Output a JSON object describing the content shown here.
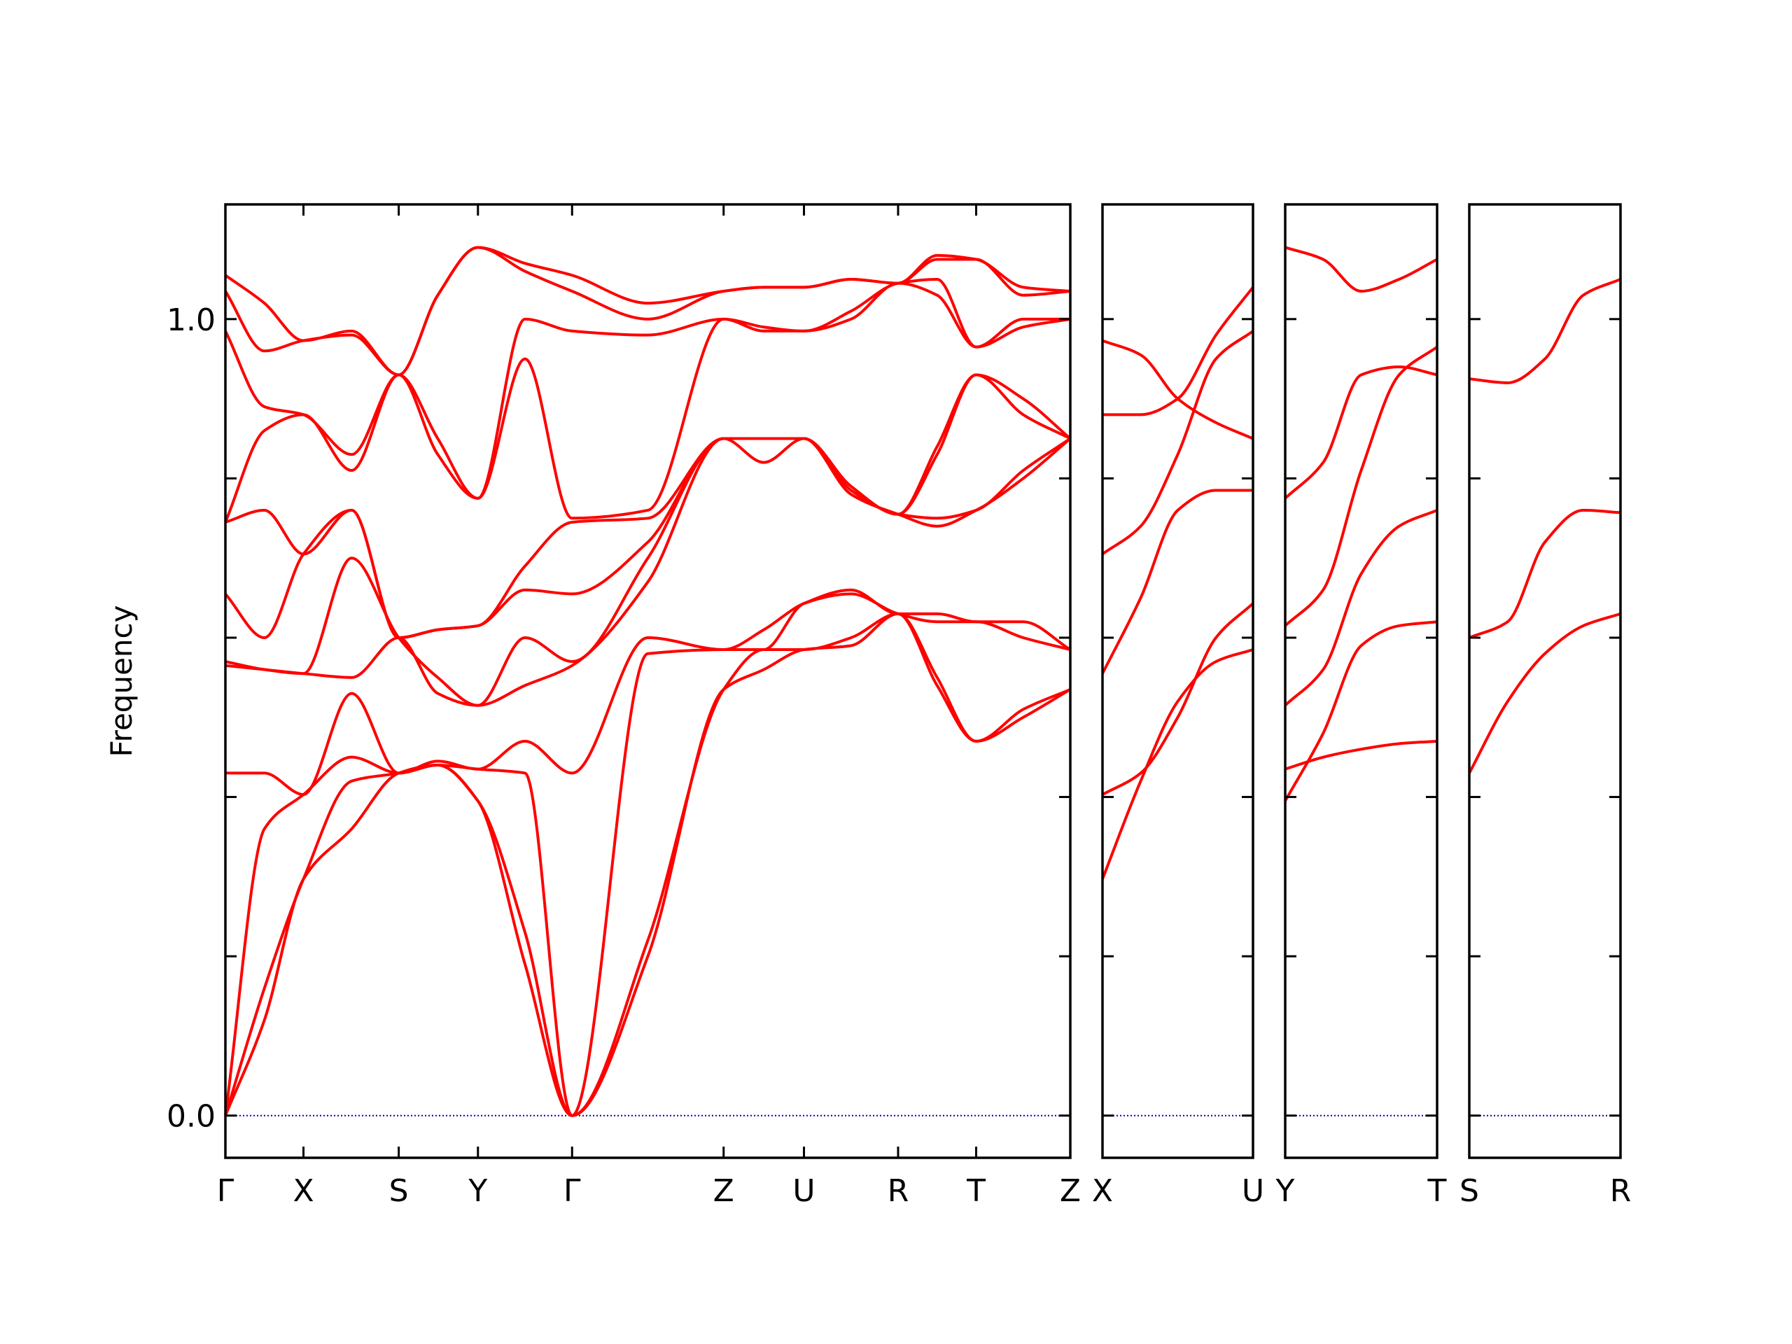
{
  "chart_data": [
    {
      "type": "line",
      "y_label": "Frequency",
      "x": [
        0,
        34,
        68,
        110,
        151,
        185,
        220,
        261,
        302,
        368,
        434,
        469,
        504,
        545,
        586,
        620,
        654,
        695,
        736
      ],
      "xlim": [
        0,
        736
      ],
      "xticks": [
        {
          "value": 0,
          "label": "Γ"
        },
        {
          "value": 68,
          "label": "X"
        },
        {
          "value": 151,
          "label": "S"
        },
        {
          "value": 220,
          "label": "Y"
        },
        {
          "value": 302,
          "label": "Γ"
        },
        {
          "value": 434,
          "label": "Z"
        },
        {
          "value": 504,
          "label": "U"
        },
        {
          "value": 586,
          "label": "R"
        },
        {
          "value": 654,
          "label": "T"
        },
        {
          "value": 736,
          "label": "Z"
        }
      ],
      "ylim": [
        -0.053,
        1.144
      ],
      "yticks": [
        {
          "value": 0,
          "label": "0.0"
        },
        0.2,
        0.4,
        0.6,
        0.8,
        {
          "value": 1,
          "label": "1.0"
        }
      ],
      "series": [
        {
          "color": "#ff0000",
          "values": [
            0,
            0.12,
            0.297,
            0.36,
            0.43,
            0.44,
            0.395,
            0.19,
            0,
            0.2,
            0.535,
            0.56,
            0.585,
            0.59,
            0.63,
            0.54,
            0.47,
            0.5,
            0.535
          ]
        },
        {
          "color": "#ff0000",
          "values": [
            0,
            0.16,
            0.297,
            0.42,
            0.43,
            0.44,
            0.395,
            0.23,
            0,
            0.22,
            0.535,
            0.585,
            0.585,
            0.6,
            0.63,
            0.55,
            0.47,
            0.51,
            0.535
          ]
        },
        {
          "color": "#ff0000",
          "values": [
            0,
            0.36,
            0.403,
            0.45,
            0.43,
            0.44,
            0.435,
            0.43,
            0,
            0.58,
            0.585,
            0.585,
            0.643,
            0.655,
            0.63,
            0.62,
            0.62,
            0.6,
            0.585
          ]
        },
        {
          "color": "#ff0000",
          "values": [
            0.43,
            0.43,
            0.403,
            0.53,
            0.43,
            0.445,
            0.435,
            0.47,
            0.43,
            0.6,
            0.585,
            0.61,
            0.643,
            0.66,
            0.63,
            0.63,
            0.62,
            0.62,
            0.585
          ]
        },
        {
          "color": "#ff0000",
          "values": [
            0.565,
            0.56,
            0.555,
            0.55,
            0.6,
            0.53,
            0.515,
            0.54,
            0.565,
            0.67,
            0.85,
            0.82,
            0.85,
            0.78,
            0.755,
            0.74,
            0.76,
            0.8,
            0.85
          ]
        },
        {
          "color": "#ff0000",
          "values": [
            0.57,
            0.56,
            0.555,
            0.7,
            0.6,
            0.55,
            0.515,
            0.6,
            0.57,
            0.7,
            0.85,
            0.85,
            0.85,
            0.785,
            0.755,
            0.75,
            0.76,
            0.81,
            0.85
          ]
        },
        {
          "color": "#ff0000",
          "values": [
            0.655,
            0.6,
            0.705,
            0.76,
            0.6,
            0.61,
            0.615,
            0.66,
            0.655,
            0.72,
            0.85,
            0.85,
            0.85,
            0.79,
            0.755,
            0.83,
            0.93,
            0.88,
            0.85
          ]
        },
        {
          "color": "#ff0000",
          "values": [
            0.745,
            0.76,
            0.705,
            0.76,
            0.6,
            0.61,
            0.615,
            0.69,
            0.745,
            0.75,
            0.85,
            0.85,
            0.85,
            0.79,
            0.755,
            0.84,
            0.93,
            0.9,
            0.85
          ]
        },
        {
          "color": "#ff0000",
          "values": [
            0.745,
            0.86,
            0.88,
            0.81,
            0.93,
            0.83,
            0.775,
            0.95,
            0.75,
            0.76,
            1.0,
            0.985,
            0.985,
            1.0,
            1.045,
            1.03,
            0.965,
            0.99,
            1.0
          ]
        },
        {
          "color": "#ff0000",
          "values": [
            0.985,
            0.89,
            0.88,
            0.83,
            0.93,
            0.85,
            0.775,
            1.0,
            0.985,
            0.98,
            1.0,
            0.99,
            0.985,
            1.01,
            1.045,
            1.05,
            0.965,
            1.0,
            1.0
          ]
        },
        {
          "color": "#ff0000",
          "values": [
            1.035,
            0.96,
            0.973,
            0.98,
            0.93,
            1.03,
            1.09,
            1.06,
            1.035,
            1.0,
            1.035,
            1.04,
            1.04,
            1.05,
            1.045,
            1.075,
            1.075,
            1.03,
            1.035
          ]
        },
        {
          "color": "#ff0000",
          "values": [
            1.055,
            1.02,
            0.973,
            0.985,
            0.93,
            1.03,
            1.09,
            1.07,
            1.055,
            1.02,
            1.035,
            1.04,
            1.04,
            1.05,
            1.045,
            1.08,
            1.075,
            1.04,
            1.035
          ]
        }
      ]
    },
    {
      "type": "line",
      "x": [
        0,
        33,
        65,
        98,
        130
      ],
      "xlim": [
        0,
        130
      ],
      "xticks": [
        {
          "value": 0,
          "label": "X"
        },
        {
          "value": 130,
          "label": "U"
        }
      ],
      "ylim": [
        -0.053,
        1.144
      ],
      "yticks": [
        0,
        0.2,
        0.4,
        0.6,
        0.8,
        1
      ],
      "series": [
        {
          "color": "#ff0000",
          "values": [
            0.297,
            0.42,
            0.52,
            0.57,
            0.585
          ]
        },
        {
          "color": "#ff0000",
          "values": [
            0.403,
            0.43,
            0.5,
            0.6,
            0.643
          ]
        },
        {
          "color": "#ff0000",
          "values": [
            0.555,
            0.65,
            0.76,
            0.785,
            0.785
          ]
        },
        {
          "color": "#ff0000",
          "values": [
            0.705,
            0.74,
            0.83,
            0.95,
            0.985
          ]
        },
        {
          "color": "#ff0000",
          "values": [
            0.88,
            0.88,
            0.9,
            0.98,
            1.04
          ]
        },
        {
          "color": "#ff0000",
          "values": [
            0.973,
            0.955,
            0.9,
            0.87,
            0.85
          ]
        }
      ]
    },
    {
      "type": "line",
      "x": [
        0,
        33,
        66,
        99,
        132
      ],
      "xlim": [
        0,
        132
      ],
      "xticks": [
        {
          "value": 0,
          "label": "Y"
        },
        {
          "value": 132,
          "label": "T"
        }
      ],
      "ylim": [
        -0.053,
        1.144
      ],
      "yticks": [
        0,
        0.2,
        0.4,
        0.6,
        0.8,
        1
      ],
      "series": [
        {
          "color": "#ff0000",
          "values": [
            0.435,
            0.45,
            0.46,
            0.467,
            0.47
          ]
        },
        {
          "color": "#ff0000",
          "values": [
            0.395,
            0.48,
            0.59,
            0.615,
            0.62
          ]
        },
        {
          "color": "#ff0000",
          "values": [
            0.515,
            0.56,
            0.68,
            0.74,
            0.76
          ]
        },
        {
          "color": "#ff0000",
          "values": [
            0.615,
            0.66,
            0.81,
            0.93,
            0.965
          ]
        },
        {
          "color": "#ff0000",
          "values": [
            0.775,
            0.82,
            0.93,
            0.94,
            0.93
          ]
        },
        {
          "color": "#ff0000",
          "values": [
            1.09,
            1.075,
            1.035,
            1.05,
            1.075
          ]
        }
      ]
    },
    {
      "type": "line",
      "x": [
        0,
        33,
        65,
        98,
        130
      ],
      "xlim": [
        0,
        130
      ],
      "xticks": [
        {
          "value": 0,
          "label": "S"
        },
        {
          "value": 130,
          "label": "R"
        }
      ],
      "ylim": [
        -0.053,
        1.144
      ],
      "yticks": [
        0,
        0.2,
        0.4,
        0.6,
        0.8,
        1
      ],
      "series": [
        {
          "color": "#ff0000",
          "values": [
            0.43,
            0.52,
            0.58,
            0.615,
            0.63
          ]
        },
        {
          "color": "#ff0000",
          "values": [
            0.6,
            0.62,
            0.72,
            0.76,
            0.757
          ]
        },
        {
          "color": "#ff0000",
          "values": [
            0.925,
            0.92,
            0.95,
            1.03,
            1.05
          ]
        }
      ]
    }
  ]
}
